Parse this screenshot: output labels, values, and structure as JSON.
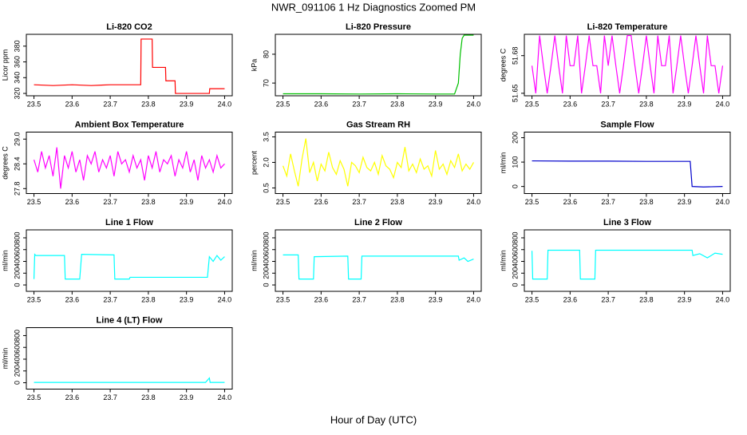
{
  "title": "NWR_091106  1 Hz Diagnostics Zoomed PM",
  "xlabel": "Hour of Day (UTC)",
  "chart_data": [
    {
      "type": "line",
      "title": "Li-820 CO2",
      "ylabel": "Licor ppm",
      "color": "#ff0000",
      "x": [
        23.5,
        23.55,
        23.6,
        23.65,
        23.7,
        23.75,
        23.78,
        23.781,
        23.81,
        23.811,
        23.845,
        23.846,
        23.87,
        23.871,
        23.9,
        23.96,
        23.961,
        24.0
      ],
      "values": [
        331,
        330,
        331,
        330,
        331,
        331,
        331,
        389,
        389,
        353,
        353,
        336,
        336,
        320,
        320,
        320,
        326,
        326
      ],
      "xlim": [
        23.48,
        24.02
      ],
      "xticks": [
        23.5,
        23.6,
        23.7,
        23.8,
        23.9,
        {
          "value": 24,
          "label": "24.0"
        }
      ],
      "ylim": [
        317,
        395
      ],
      "yticks": [
        320,
        340,
        360,
        380
      ]
    },
    {
      "type": "line",
      "title": "Li-820 Pressure",
      "ylabel": "kPa",
      "color": "#00c000",
      "x": [
        23.5,
        23.6,
        23.7,
        23.8,
        23.9,
        23.95,
        23.96,
        23.965,
        23.97,
        23.975,
        24.0
      ],
      "values": [
        66.3,
        66.3,
        66.2,
        66.3,
        66.2,
        66.2,
        70,
        80,
        85.5,
        86.6,
        86.6
      ],
      "xlim": [
        23.48,
        24.02
      ],
      "xticks": [
        23.5,
        23.6,
        23.7,
        23.8,
        23.9,
        {
          "value": 24,
          "label": "24.0"
        }
      ],
      "ylim": [
        65.6,
        86.9
      ],
      "yticks": [
        70,
        80
      ]
    },
    {
      "type": "line",
      "title": "Li-820 Temperature",
      "ylabel": "degrees C",
      "color": "#ff00ff",
      "x": [
        23.5,
        23.51,
        23.52,
        23.53,
        23.54,
        23.55,
        23.56,
        23.57,
        23.58,
        23.59,
        23.6,
        23.61,
        23.62,
        23.63,
        23.64,
        23.65,
        23.66,
        23.67,
        23.68,
        23.69,
        23.7,
        23.71,
        23.72,
        23.73,
        23.74,
        23.75,
        23.76,
        23.77,
        23.78,
        23.79,
        23.8,
        23.81,
        23.82,
        23.83,
        23.84,
        23.85,
        23.86,
        23.87,
        23.88,
        23.89,
        23.9,
        23.91,
        23.92,
        23.93,
        23.94,
        23.95,
        23.96,
        23.97,
        23.98,
        23.99,
        24
      ],
      "values": [
        51.672,
        51.65,
        51.696,
        51.672,
        51.65,
        51.672,
        51.696,
        51.672,
        51.65,
        51.696,
        51.672,
        51.672,
        51.696,
        51.65,
        51.672,
        51.696,
        51.672,
        51.672,
        51.65,
        51.696,
        51.672,
        51.696,
        51.672,
        51.65,
        51.672,
        51.696,
        51.696,
        51.672,
        51.65,
        51.672,
        51.696,
        51.672,
        51.65,
        51.696,
        51.672,
        51.672,
        51.696,
        51.65,
        51.672,
        51.696,
        51.672,
        51.65,
        51.672,
        51.696,
        51.672,
        51.65,
        51.696,
        51.672,
        51.672,
        51.65,
        51.672
      ],
      "xlim": [
        23.48,
        24.02
      ],
      "xticks": [
        23.5,
        23.6,
        23.7,
        23.8,
        23.9,
        {
          "value": 24,
          "label": "24.0"
        }
      ],
      "ylim": [
        51.648,
        51.697
      ],
      "yticks": [
        51.65,
        51.68
      ]
    },
    {
      "type": "line",
      "title": "Ambient Box Temperature",
      "ylabel": "degrees C",
      "color": "#ff00ff",
      "x": [
        23.5,
        23.51,
        23.52,
        23.53,
        23.54,
        23.55,
        23.56,
        23.57,
        23.58,
        23.59,
        23.6,
        23.61,
        23.62,
        23.63,
        23.64,
        23.65,
        23.66,
        23.67,
        23.68,
        23.69,
        23.7,
        23.71,
        23.72,
        23.73,
        23.74,
        23.75,
        23.76,
        23.77,
        23.78,
        23.79,
        23.8,
        23.81,
        23.82,
        23.83,
        23.84,
        23.85,
        23.86,
        23.87,
        23.88,
        23.89,
        23.9,
        23.91,
        23.92,
        23.93,
        23.94,
        23.95,
        23.96,
        23.97,
        23.98,
        23.99,
        24
      ],
      "values": [
        28.5,
        28.2,
        28.7,
        28.3,
        28.6,
        28.1,
        28.8,
        27.8,
        28.6,
        28.3,
        28.7,
        28.2,
        28.5,
        28.0,
        28.6,
        28.4,
        28.7,
        28.2,
        28.5,
        28.3,
        28.6,
        28.1,
        28.7,
        28.4,
        28.5,
        28.2,
        28.6,
        28.3,
        28.5,
        28.0,
        28.6,
        28.3,
        28.7,
        28.2,
        28.5,
        28.4,
        28.6,
        28.1,
        28.5,
        28.3,
        28.7,
        28.2,
        28.5,
        28.0,
        28.6,
        28.3,
        28.5,
        28.2,
        28.6,
        28.3,
        28.4
      ],
      "xlim": [
        23.48,
        24.02
      ],
      "xticks": [
        23.5,
        23.6,
        23.7,
        23.8,
        23.9,
        {
          "value": 24,
          "label": "24.0"
        }
      ],
      "ylim": [
        27.68,
        29.17
      ],
      "yticks": [
        27.8,
        28.4,
        {
          "value": 29,
          "label": "29.0"
        }
      ]
    },
    {
      "type": "line",
      "title": "Gas Stream RH",
      "ylabel": "percent",
      "color": "#ffff00",
      "x": [
        23.5,
        23.51,
        23.52,
        23.53,
        23.54,
        23.55,
        23.56,
        23.57,
        23.58,
        23.59,
        23.6,
        23.61,
        23.62,
        23.63,
        23.64,
        23.65,
        23.66,
        23.67,
        23.68,
        23.69,
        23.7,
        23.71,
        23.72,
        23.73,
        23.74,
        23.75,
        23.76,
        23.77,
        23.78,
        23.79,
        23.8,
        23.81,
        23.82,
        23.83,
        23.84,
        23.85,
        23.86,
        23.87,
        23.88,
        23.89,
        23.9,
        23.91,
        23.92,
        23.93,
        23.94,
        23.95,
        23.96,
        23.97,
        23.98,
        23.99,
        24
      ],
      "values": [
        1.8,
        1.2,
        2.5,
        1.5,
        0.6,
        2.2,
        3.4,
        1.4,
        2.0,
        0.9,
        1.9,
        1.5,
        2.6,
        1.7,
        1.3,
        2.1,
        1.6,
        0.6,
        2.0,
        1.8,
        1.4,
        2.3,
        1.7,
        1.5,
        2.0,
        1.3,
        2.4,
        1.8,
        1.6,
        1.1,
        2.0,
        1.7,
        2.9,
        1.5,
        1.9,
        1.4,
        2.2,
        1.6,
        1.8,
        1.2,
        2.7,
        1.6,
        1.9,
        1.3,
        2.1,
        1.7,
        2.5,
        1.5,
        1.9,
        1.6,
        2.0
      ],
      "xlim": [
        23.48,
        24.02
      ],
      "xticks": [
        23.5,
        23.6,
        23.7,
        23.8,
        23.9,
        {
          "value": 24,
          "label": "24.0"
        }
      ],
      "ylim": [
        0.17,
        3.78
      ],
      "yticks": [
        0.5,
        {
          "value": 2,
          "label": "2.0"
        },
        3.5
      ]
    },
    {
      "type": "line",
      "title": "Sample Flow",
      "ylabel": "ml/min",
      "color": "#0000cc",
      "x": [
        23.5,
        23.6,
        23.7,
        23.8,
        23.9,
        23.915,
        23.92,
        23.95,
        24.0
      ],
      "values": [
        105,
        104,
        104,
        103,
        103,
        103,
        0,
        -2,
        0
      ],
      "xlim": [
        23.48,
        24.02
      ],
      "xticks": [
        23.5,
        23.6,
        23.7,
        23.8,
        23.9,
        {
          "value": 24,
          "label": "24.0"
        }
      ],
      "ylim": [
        -29,
        223
      ],
      "yticks": [
        0,
        100,
        200
      ]
    },
    {
      "type": "line",
      "title": "Line 1 Flow",
      "ylabel": "ml/min",
      "color": "#00ffff",
      "x": [
        23.5,
        23.502,
        23.505,
        23.58,
        23.582,
        23.62,
        23.625,
        23.71,
        23.712,
        23.75,
        23.752,
        23.955,
        23.96,
        23.97,
        23.98,
        23.99,
        24.0
      ],
      "values": [
        100,
        520,
        500,
        500,
        100,
        100,
        520,
        510,
        100,
        100,
        130,
        130,
        480,
        400,
        500,
        420,
        480
      ],
      "xlim": [
        23.48,
        24.02
      ],
      "xticks": [
        23.5,
        23.6,
        23.7,
        23.8,
        23.9,
        {
          "value": 24,
          "label": "24.0"
        }
      ],
      "ylim": [
        -108,
        935
      ],
      "yticks": [
        0,
        200,
        400,
        600,
        800
      ]
    },
    {
      "type": "line",
      "title": "Line 2 Flow",
      "ylabel": "ml/min",
      "color": "#00ffff",
      "x": [
        23.5,
        23.54,
        23.542,
        23.58,
        23.582,
        23.67,
        23.672,
        23.705,
        23.707,
        23.96,
        23.962,
        23.975,
        23.985,
        24.0
      ],
      "values": [
        510,
        510,
        100,
        100,
        480,
        490,
        100,
        100,
        490,
        490,
        420,
        460,
        400,
        440
      ],
      "xlim": [
        23.48,
        24.02
      ],
      "xticks": [
        23.5,
        23.6,
        23.7,
        23.8,
        23.9,
        {
          "value": 24,
          "label": "24.0"
        }
      ],
      "ylim": [
        -108,
        935
      ],
      "yticks": [
        0,
        200,
        400,
        600,
        800
      ]
    },
    {
      "type": "line",
      "title": "Line 3 Flow",
      "ylabel": "ml/min",
      "color": "#00ffff",
      "x": [
        23.5,
        23.502,
        23.54,
        23.542,
        23.625,
        23.627,
        23.665,
        23.667,
        23.92,
        23.922,
        23.94,
        23.96,
        23.98,
        24.0
      ],
      "values": [
        580,
        100,
        100,
        590,
        590,
        100,
        100,
        590,
        590,
        500,
        530,
        460,
        540,
        520
      ],
      "xlim": [
        23.48,
        24.02
      ],
      "xticks": [
        23.5,
        23.6,
        23.7,
        23.8,
        23.9,
        {
          "value": 24,
          "label": "24.0"
        }
      ],
      "ylim": [
        -108,
        935
      ],
      "yticks": [
        0,
        200,
        400,
        600,
        800
      ]
    },
    {
      "type": "line",
      "title": "Line 4 (LT) Flow",
      "ylabel": "ml/min",
      "color": "#00ffff",
      "x": [
        23.5,
        23.7,
        23.95,
        23.96,
        23.962,
        24.0
      ],
      "values": [
        5,
        5,
        5,
        80,
        5,
        5
      ],
      "xlim": [
        23.48,
        24.02
      ],
      "xticks": [
        23.5,
        23.6,
        23.7,
        23.8,
        23.9,
        {
          "value": 24,
          "label": "24.0"
        }
      ],
      "ylim": [
        -108,
        935
      ],
      "yticks": [
        0,
        200,
        400,
        600,
        800
      ]
    }
  ]
}
